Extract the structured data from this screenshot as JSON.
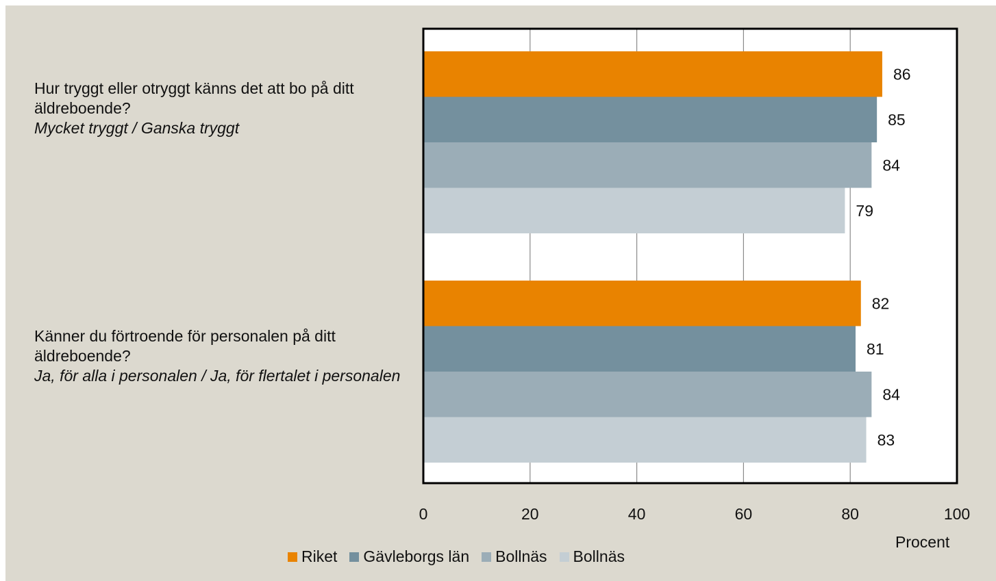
{
  "chart_data": {
    "type": "bar",
    "orientation": "horizontal",
    "categories": [
      {
        "question": "Hur tryggt eller otryggt känns det att bo på ditt äldreboende?",
        "answer": "Mycket tryggt / Ganska tryggt"
      },
      {
        "question": "Känner du förtroende för personalen på ditt äldreboende?",
        "answer": "Ja, för alla i personalen / Ja, för flertalet i personalen"
      }
    ],
    "series": [
      {
        "name": "Riket",
        "color": "#e98300",
        "values": [
          86,
          82
        ]
      },
      {
        "name": "Gävleborgs län",
        "color": "#74909e",
        "values": [
          85,
          81
        ]
      },
      {
        "name": "Bollnäs",
        "color": "#9badb7",
        "values": [
          84,
          84
        ]
      },
      {
        "name": "Bollnäs",
        "color": "#c4ced4",
        "values": [
          79,
          83
        ]
      }
    ],
    "xlim": [
      0,
      100
    ],
    "xticks": [
      "0",
      "20",
      "40",
      "60",
      "80",
      "100"
    ],
    "xlabel": "Procent",
    "grid": true,
    "legend": "bottom",
    "data_labels": true
  }
}
